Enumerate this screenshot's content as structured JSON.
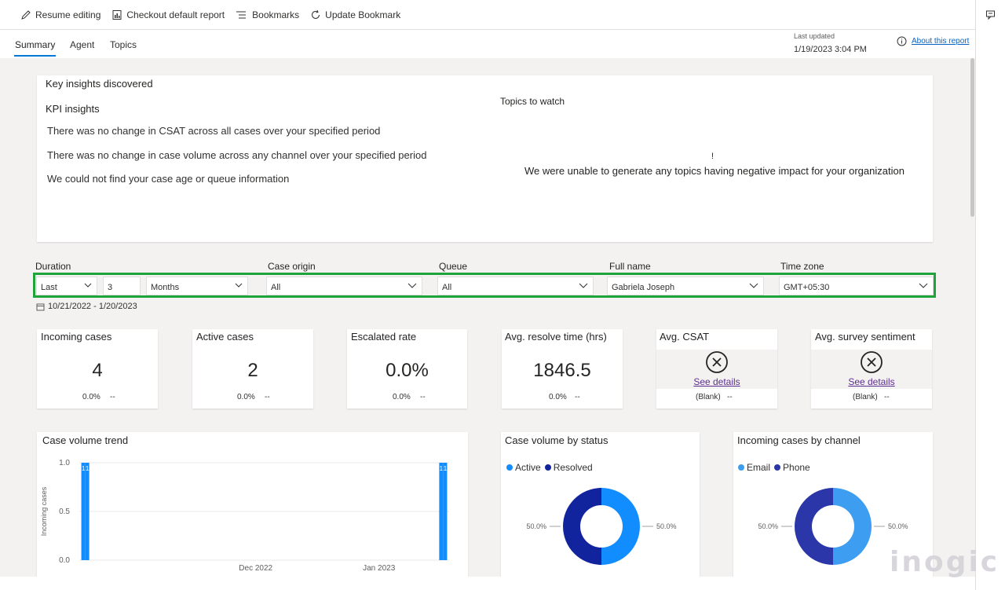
{
  "toolbar": {
    "resume_editing": "Resume editing",
    "checkout_default": "Checkout default report",
    "bookmarks": "Bookmarks",
    "update_bookmark": "Update Bookmark"
  },
  "tabs": [
    {
      "label": "Summary",
      "active": true
    },
    {
      "label": "Agent",
      "active": false
    },
    {
      "label": "Topics",
      "active": false
    }
  ],
  "last_updated": {
    "label": "Last updated",
    "value": "1/19/2023 3:04 PM"
  },
  "about_link": "About this report",
  "insights": {
    "title": "Key insights discovered",
    "kpi_title": "KPI insights",
    "kpi_lines": [
      "There was no change in CSAT across all cases over your specified period",
      "There was no change in case volume across any channel over your specified period",
      "We could not find your case age or queue information"
    ],
    "topics_title": "Topics to watch",
    "topics_bang": "!",
    "topics_message": "We were unable to generate any topics having negative impact for your organization"
  },
  "filters": {
    "duration_label": "Duration",
    "duration_mode": "Last",
    "duration_count": "3",
    "duration_unit": "Months",
    "case_origin_label": "Case origin",
    "case_origin_value": "All",
    "queue_label": "Queue",
    "queue_value": "All",
    "full_name_label": "Full name",
    "full_name_value": "Gabriela Joseph",
    "time_zone_label": "Time zone",
    "time_zone_value": "GMT+05:30",
    "date_range": "10/21/2022 - 1/20/2023"
  },
  "kpis": [
    {
      "title": "Incoming cases",
      "value": "4",
      "change": "0.0%",
      "trend": "--"
    },
    {
      "title": "Active cases",
      "value": "2",
      "change": "0.0%",
      "trend": "--"
    },
    {
      "title": "Escalated rate",
      "value": "0.0%",
      "change": "0.0%",
      "trend": "--"
    },
    {
      "title": "Avg. resolve time (hrs)",
      "value": "1846.5",
      "change": "0.0%",
      "trend": "--"
    },
    {
      "title": "Avg. CSAT",
      "link": "See details",
      "change": "(Blank)",
      "trend": "--"
    },
    {
      "title": "Avg. survey sentiment",
      "link": "See details",
      "change": "(Blank)",
      "trend": "--"
    }
  ],
  "colors": {
    "accent": "#0078d4",
    "highlight_frame": "#1ea43a",
    "bar": "#118dff",
    "donut_light": "#118dff",
    "donut_dark": "#12239e",
    "donut_channel_light": "#3d9df0",
    "donut_channel_dark": "#2b36a8"
  },
  "watermark": "inogic",
  "chart_data": [
    {
      "type": "bar",
      "title": "Case volume trend",
      "ylabel": "Incoming cases",
      "ylim": [
        0,
        1
      ],
      "yticks": [
        "1.0",
        "0.5",
        "0.0"
      ],
      "xticks": [
        "Dec 2022",
        "Jan 2023"
      ],
      "bar_label": "1",
      "series": [
        {
          "name": "Incoming cases",
          "x": [
            "10/21/2022",
            "10/22/2022",
            "1/19/2023",
            "1/20/2023"
          ],
          "values": [
            1,
            1,
            1,
            1
          ]
        }
      ]
    },
    {
      "type": "pie",
      "title": "Case volume by status",
      "labels": [
        "Active",
        "Resolved"
      ],
      "values": [
        50.0,
        50.0
      ],
      "value_labels": [
        "50.0%",
        "50.0%"
      ]
    },
    {
      "type": "pie",
      "title": "Incoming cases by channel",
      "labels": [
        "Email",
        "Phone"
      ],
      "values": [
        50.0,
        50.0
      ],
      "value_labels": [
        "50.0%",
        "50.0%"
      ]
    }
  ]
}
